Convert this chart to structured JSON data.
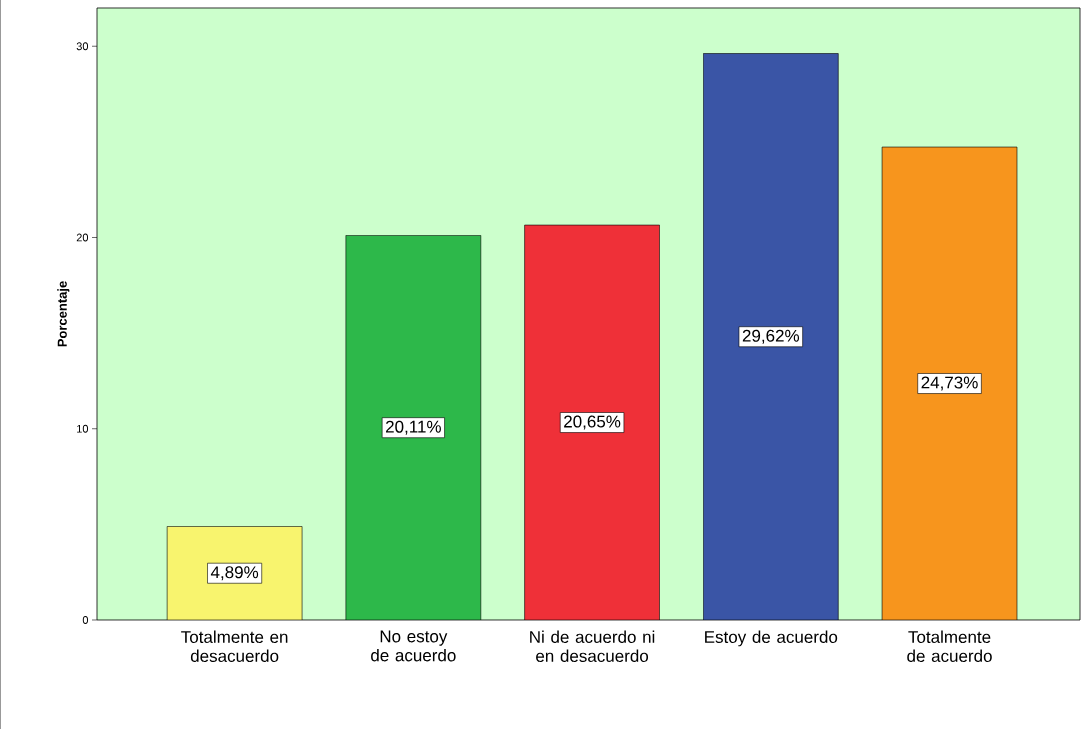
{
  "chart_data": {
    "type": "bar",
    "ylabel": "Porcentaje",
    "categories": [
      "Totalmente en desacuerdo",
      "No estoy de acuerdo",
      "Ni de acuerdo ni en desacuerdo",
      "Estoy de acuerdo",
      "Totalmente de acuerdo"
    ],
    "values": [
      4.89,
      20.11,
      20.65,
      29.62,
      24.73
    ],
    "value_labels": [
      "4,89%",
      "20,11%",
      "20,65%",
      "29,62%",
      "24,73%"
    ],
    "colors": [
      "#f8f46e",
      "#2db84a",
      "#ef3038",
      "#3a55a6",
      "#f7951d"
    ],
    "ylim": [
      0,
      32
    ],
    "yticks": [
      0,
      10,
      20,
      30
    ]
  }
}
